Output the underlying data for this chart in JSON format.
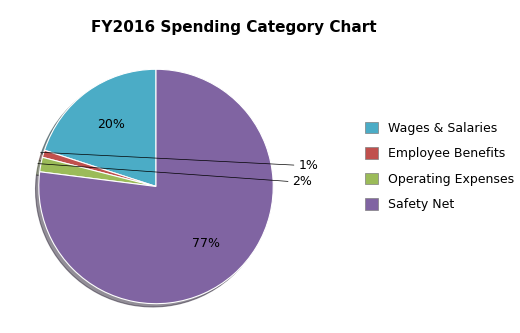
{
  "title": "FY2016 Spending Category Chart",
  "labels": [
    "Wages & Salaries",
    "Employee Benefits",
    "Operating Expenses",
    "Safety Net"
  ],
  "values": [
    20,
    1,
    2,
    77
  ],
  "colors": [
    "#4bacc6",
    "#c0504d",
    "#9bbb59",
    "#8064a2"
  ],
  "title_fontsize": 11,
  "label_fontsize": 9,
  "legend_fontsize": 9,
  "background_color": "#ffffff",
  "startangle": 90,
  "shadow": true,
  "pctdistance": 0.65
}
